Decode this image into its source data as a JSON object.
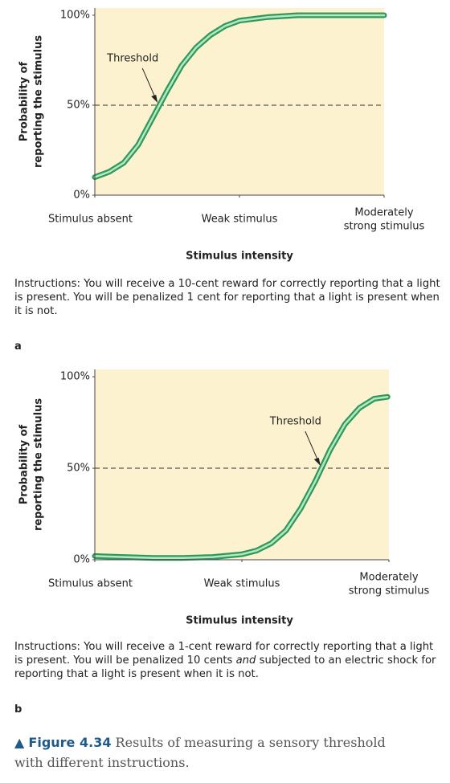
{
  "chart_data": [
    {
      "type": "line",
      "ylabel": [
        "Probability of",
        "reporting the stimulus"
      ],
      "xlabel": "Stimulus intensity",
      "x": [
        0,
        0.5,
        1,
        1.5,
        2,
        2.5,
        3,
        3.5,
        4,
        4.5,
        5,
        6,
        7,
        8,
        9,
        10
      ],
      "values": [
        10,
        13,
        18,
        28,
        43,
        58,
        72,
        82,
        89,
        94,
        97,
        99,
        100,
        100,
        100,
        100
      ],
      "color": "#2e9a5a",
      "xlim": [
        0,
        10
      ],
      "xticks": [
        {
          "value": 0,
          "label": [
            "Stimulus absent"
          ]
        },
        {
          "value": 5,
          "label": [
            "Weak stimulus"
          ]
        },
        {
          "value": 10,
          "label": [
            "Moderately",
            "strong stimulus"
          ]
        }
      ],
      "ylim": [
        0,
        104
      ],
      "yticks": [
        {
          "value": 0,
          "label": "0%"
        },
        {
          "value": 50,
          "label": "50%"
        },
        {
          "value": 100,
          "label": "100%"
        }
      ],
      "hline": 50,
      "annotation": {
        "text": "Threshold",
        "x": 2.2,
        "y": 50
      },
      "instructions": [
        "Instructions: You will receive a 10-cent reward for correctly reporting that a light is present. You will be penalized 1 cent for reporting that a light is present when it is not."
      ],
      "panel_label": "a"
    },
    {
      "type": "line",
      "ylabel": [
        "Probability of",
        "reporting the stimulus"
      ],
      "xlabel": "Stimulus intensity",
      "x": [
        0,
        1,
        2,
        3,
        4,
        5,
        5.5,
        6,
        6.5,
        7,
        7.5,
        8,
        8.5,
        9,
        9.5,
        9.95
      ],
      "values": [
        2,
        1.5,
        1,
        1,
        1.5,
        3,
        5,
        9,
        16,
        28,
        43,
        60,
        74,
        83,
        88,
        89
      ],
      "color": "#2e9a5a",
      "xlim": [
        0,
        10
      ],
      "xticks": [
        {
          "value": 0,
          "label": [
            "Stimulus absent"
          ]
        },
        {
          "value": 5,
          "label": [
            "Weak stimulus"
          ]
        },
        {
          "value": 10,
          "label": [
            "Moderately",
            "strong stimulus"
          ]
        }
      ],
      "ylim": [
        0,
        104
      ],
      "yticks": [
        {
          "value": 0,
          "label": "0%"
        },
        {
          "value": 50,
          "label": "50%"
        },
        {
          "value": 100,
          "label": "100%"
        }
      ],
      "hline": 50,
      "annotation": {
        "text": "Threshold",
        "x": 7.7,
        "y": 50
      },
      "instructions": [
        "Instructions: You will receive a 1-cent reward for correctly reporting that a light is present. You will be penalized 10 cents ",
        "and",
        " subjected to an electric shock for reporting that a light is present when it is not."
      ],
      "panel_label": "b"
    }
  ],
  "figure": {
    "label": "Figure 4.34",
    "text": "Results of measuring a sensory threshold with different instructions."
  }
}
